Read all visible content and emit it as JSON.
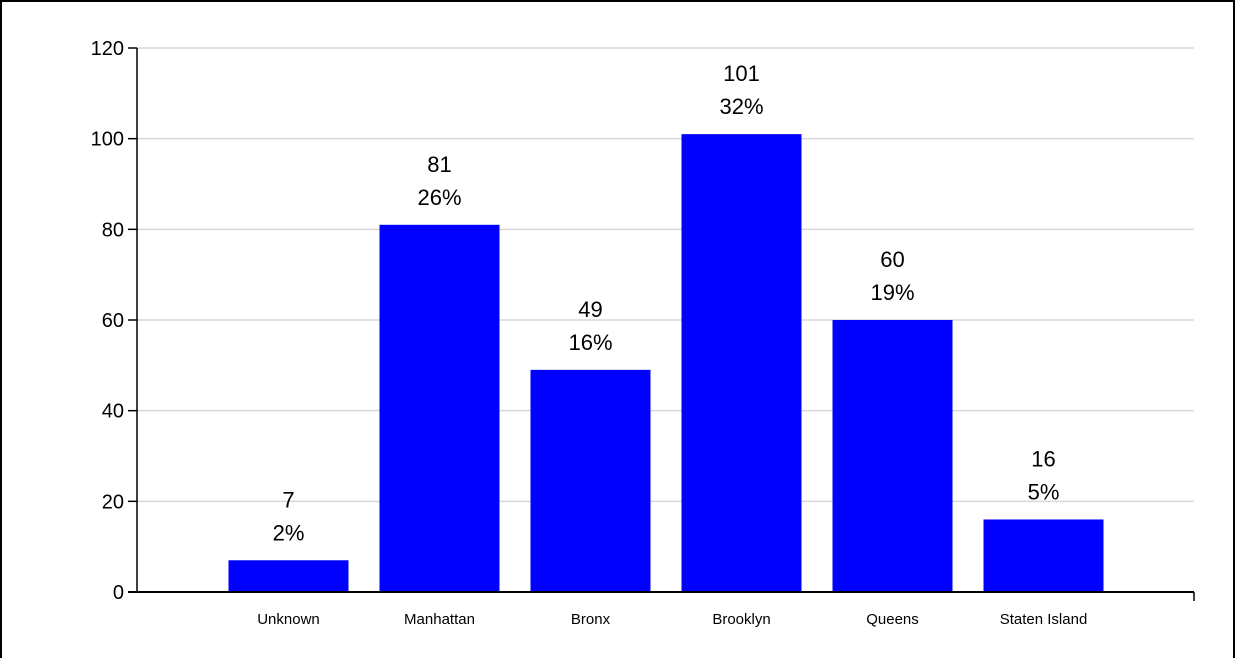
{
  "chart_data": {
    "type": "bar",
    "title": "",
    "xlabel": "",
    "ylabel": "",
    "categories": [
      "Unknown",
      "Manhattan",
      "Bronx",
      "Brooklyn",
      "Queens",
      "Staten Island"
    ],
    "values": [
      7,
      81,
      49,
      101,
      60,
      16
    ],
    "percent_labels": [
      "2%",
      "26%",
      "16%",
      "32%",
      "19%",
      "5%"
    ],
    "ylim": [
      0,
      120
    ],
    "yticks": [
      0,
      20,
      40,
      60,
      80,
      100,
      120
    ],
    "grid": true,
    "legend": "none",
    "colors": {
      "bar": "#0000ff",
      "grid": "#d9d9d9",
      "axis": "#000000"
    }
  }
}
